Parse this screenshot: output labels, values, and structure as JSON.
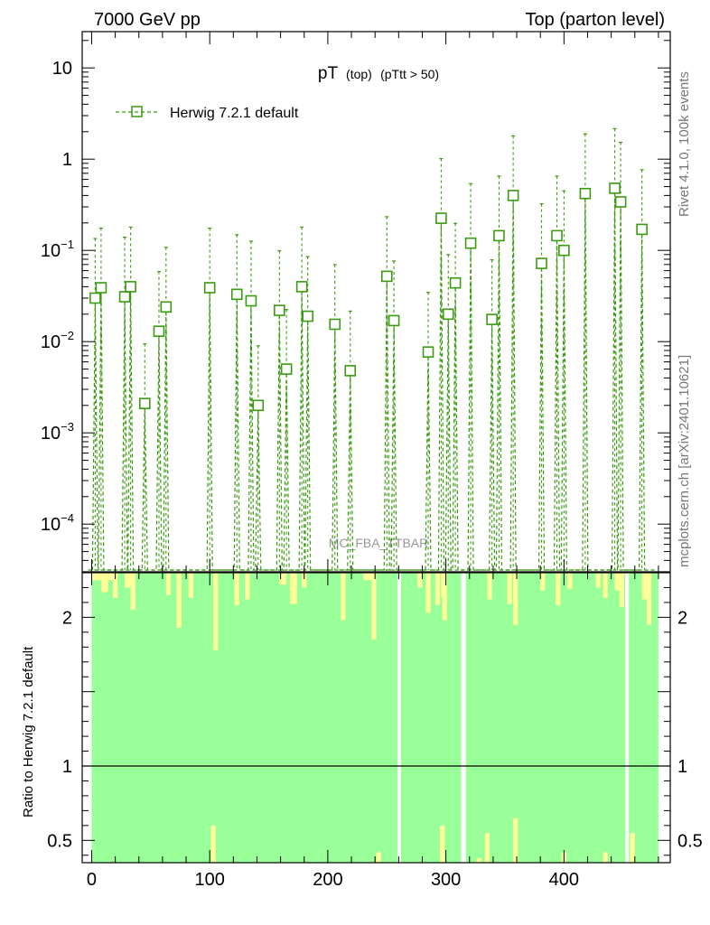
{
  "header": {
    "left": "7000 GeV pp",
    "right": "Top (parton level)"
  },
  "side_text": {
    "rivet": "Rivet 4.1.0,  100k events",
    "mcplots": "mcplots.cern.ch [arXiv:2401.10621]"
  },
  "plot_title": {
    "main": "pT",
    "sub1": "(top)",
    "sub2": "(pTtt > 50)"
  },
  "watermark": "MC_FBA_TTBAR",
  "colors": {
    "series": "#3a9a10",
    "band_inner": "#99ff99",
    "band_outer": "#ffff99",
    "frame": "#000000"
  },
  "chart_data": [
    {
      "type": "line",
      "log_y": true,
      "ylim": [
        3e-05,
        25
      ],
      "xlim": [
        -8,
        490
      ],
      "y_ticks": [
        {
          "v": 10,
          "label": "10"
        },
        {
          "v": 1,
          "label": "1"
        },
        {
          "v": 0.1,
          "label": "10",
          "exp": "−1"
        },
        {
          "v": 0.01,
          "label": "10",
          "exp": "−2"
        },
        {
          "v": 0.001,
          "label": "10",
          "exp": "−3"
        },
        {
          "v": 0.0001,
          "label": "10",
          "exp": "−4"
        }
      ],
      "series": [
        {
          "name": "Herwig 7.2.1 default",
          "x": [
            3,
            8,
            28,
            33,
            45,
            57,
            63,
            100,
            123,
            135,
            141,
            159,
            165,
            178,
            183,
            206,
            219,
            250,
            256,
            285,
            296,
            302,
            308,
            321,
            339,
            345,
            357,
            381,
            394,
            400,
            418,
            443,
            448,
            466
          ],
          "y": [
            0.03,
            0.039,
            0.031,
            0.04,
            0.0021,
            0.013,
            0.024,
            0.039,
            0.033,
            0.028,
            0.002,
            0.022,
            0.005,
            0.04,
            0.019,
            0.0155,
            0.0048,
            0.052,
            0.017,
            0.0077,
            0.225,
            0.02,
            0.044,
            0.12,
            0.0175,
            0.145,
            0.4,
            0.072,
            0.145,
            0.1,
            0.42,
            0.48,
            0.34,
            0.17
          ]
        }
      ]
    },
    {
      "type": "area",
      "ylabel": "Ratio to Herwig 7.2.1 default",
      "ylim": [
        0.35,
        2.3
      ],
      "xlim": [
        -8,
        490
      ],
      "x_ticks": [
        0,
        100,
        200,
        300,
        400
      ],
      "y_ticks": [
        {
          "v": 2,
          "label": "2"
        },
        {
          "v": 1,
          "label": "1"
        },
        {
          "v": 0.5,
          "label": "0.5"
        }
      ],
      "reference_line": 1,
      "gaps_x": [
        [
          259,
          262
        ],
        [
          313,
          317
        ],
        [
          452,
          455
        ]
      ],
      "yellow_top": [
        [
          0,
          20,
          2.25
        ],
        [
          8,
          14,
          2.17
        ],
        [
          18,
          22,
          2.13
        ],
        [
          28,
          34,
          2.2
        ],
        [
          33,
          37,
          2.05
        ],
        [
          63,
          67,
          2.15
        ],
        [
          72,
          76,
          1.93
        ],
        [
          82,
          86,
          2.13
        ],
        [
          103,
          107,
          1.78
        ],
        [
          121,
          125,
          2.08
        ],
        [
          130,
          134,
          2.12
        ],
        [
          159,
          165,
          2.22
        ],
        [
          168,
          174,
          2.09
        ],
        [
          178,
          182,
          2.2
        ],
        [
          211,
          215,
          1.98
        ],
        [
          230,
          238,
          2.25
        ],
        [
          237,
          241,
          1.85
        ],
        [
          276,
          280,
          2.2
        ],
        [
          283,
          287,
          2.03
        ],
        [
          291,
          295,
          2.08
        ],
        [
          296,
          300,
          2.13
        ],
        [
          297,
          301,
          1.98
        ],
        [
          335,
          339,
          2.12
        ],
        [
          352,
          356,
          2.09
        ],
        [
          357,
          361,
          1.95
        ],
        [
          380,
          384,
          2.18
        ],
        [
          393,
          397,
          2.08
        ],
        [
          403,
          407,
          2.19
        ],
        [
          427,
          431,
          2.2
        ],
        [
          433,
          437,
          2.13
        ],
        [
          443,
          447,
          2.18
        ],
        [
          447,
          451,
          2.07
        ],
        [
          466,
          470,
          2.12
        ],
        [
          470,
          474,
          1.95
        ]
      ],
      "yellow_bottom": [
        [
          101,
          105,
          0.6
        ],
        [
          241,
          245,
          0.42
        ],
        [
          295,
          299,
          0.6
        ],
        [
          326,
          330,
          0.38
        ],
        [
          333,
          337,
          0.55
        ],
        [
          357,
          361,
          0.65
        ],
        [
          398,
          402,
          0.42
        ],
        [
          433,
          437,
          0.42
        ],
        [
          456,
          460,
          0.55
        ]
      ]
    }
  ]
}
